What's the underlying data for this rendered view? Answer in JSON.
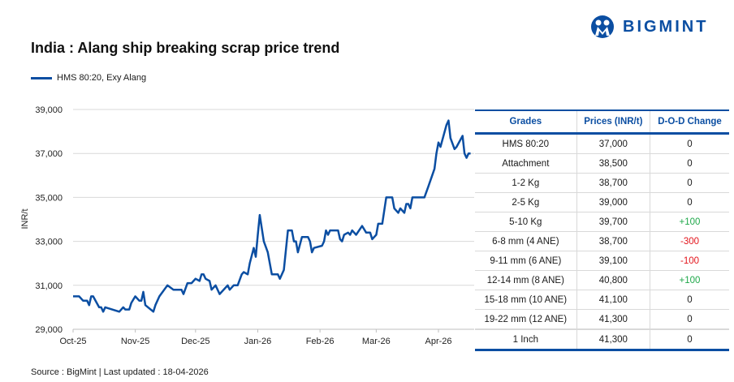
{
  "header": {
    "title": "India : Alang ship breaking scrap price trend",
    "logo_text": "BIGMINT"
  },
  "colors": {
    "series": "#0b4ea2",
    "positive": "#1fa84a",
    "negative": "#e3141b"
  },
  "chart_data": {
    "type": "line",
    "title": "India : Alang ship breaking scrap price trend",
    "ylabel": "INR/t",
    "xlabel": "",
    "ylim": [
      29000,
      39000
    ],
    "yticks": [
      "29,000",
      "31,000",
      "33,000",
      "35,000",
      "37,000",
      "39,000"
    ],
    "xticks": [
      {
        "label": "Oct-25",
        "date": "2025-10-01"
      },
      {
        "label": "Nov-25",
        "date": "2025-11-01"
      },
      {
        "label": "Dec-25",
        "date": "2025-12-01"
      },
      {
        "label": "Jan-26",
        "date": "2026-01-01"
      },
      {
        "label": "Feb-26",
        "date": "2026-02-01"
      },
      {
        "label": "Mar-26",
        "date": "2026-03-01"
      },
      {
        "label": "Apr-26",
        "date": "2026-04-01"
      }
    ],
    "grid": true,
    "legend": "top-left",
    "series": [
      {
        "name": "HMS 80:20, Exy Alang",
        "points": [
          [
            "2025-10-01",
            30500
          ],
          [
            "2025-10-04",
            30500
          ],
          [
            "2025-10-06",
            30300
          ],
          [
            "2025-10-08",
            30300
          ],
          [
            "2025-10-09",
            30100
          ],
          [
            "2025-10-10",
            30500
          ],
          [
            "2025-10-11",
            30500
          ],
          [
            "2025-10-14",
            30000
          ],
          [
            "2025-10-15",
            30000
          ],
          [
            "2025-10-16",
            29800
          ],
          [
            "2025-10-17",
            30000
          ],
          [
            "2025-10-24",
            29800
          ],
          [
            "2025-10-26",
            30000
          ],
          [
            "2025-10-27",
            29900
          ],
          [
            "2025-10-29",
            29900
          ],
          [
            "2025-10-30",
            30200
          ],
          [
            "2025-11-01",
            30500
          ],
          [
            "2025-11-03",
            30300
          ],
          [
            "2025-11-04",
            30300
          ],
          [
            "2025-11-05",
            30700
          ],
          [
            "2025-11-06",
            30100
          ],
          [
            "2025-11-10",
            29800
          ],
          [
            "2025-11-11",
            30100
          ],
          [
            "2025-11-13",
            30500
          ],
          [
            "2025-11-17",
            31000
          ],
          [
            "2025-11-20",
            30800
          ],
          [
            "2025-11-24",
            30800
          ],
          [
            "2025-11-25",
            30600
          ],
          [
            "2025-11-27",
            31100
          ],
          [
            "2025-11-29",
            31100
          ],
          [
            "2025-12-01",
            31300
          ],
          [
            "2025-12-03",
            31200
          ],
          [
            "2025-12-04",
            31500
          ],
          [
            "2025-12-05",
            31500
          ],
          [
            "2025-12-06",
            31300
          ],
          [
            "2025-12-08",
            31200
          ],
          [
            "2025-12-09",
            30800
          ],
          [
            "2025-12-11",
            31000
          ],
          [
            "2025-12-13",
            30600
          ],
          [
            "2025-12-17",
            31000
          ],
          [
            "2025-12-18",
            30800
          ],
          [
            "2025-12-20",
            31000
          ],
          [
            "2025-12-22",
            31000
          ],
          [
            "2025-12-24",
            31500
          ],
          [
            "2025-12-25",
            31600
          ],
          [
            "2025-12-27",
            31500
          ],
          [
            "2025-12-28",
            32000
          ],
          [
            "2025-12-30",
            32700
          ],
          [
            "2025-12-31",
            32300
          ],
          [
            "2026-01-01",
            33300
          ],
          [
            "2026-01-02",
            34200
          ],
          [
            "2026-01-04",
            33000
          ],
          [
            "2026-01-06",
            32500
          ],
          [
            "2026-01-08",
            31500
          ],
          [
            "2026-01-11",
            31500
          ],
          [
            "2026-01-12",
            31300
          ],
          [
            "2026-01-14",
            31700
          ],
          [
            "2026-01-16",
            33500
          ],
          [
            "2026-01-18",
            33500
          ],
          [
            "2026-01-19",
            33000
          ],
          [
            "2026-01-20",
            33000
          ],
          [
            "2026-01-21",
            32500
          ],
          [
            "2026-01-23",
            33200
          ],
          [
            "2026-01-26",
            33200
          ],
          [
            "2026-01-27",
            33000
          ],
          [
            "2026-01-28",
            32500
          ],
          [
            "2026-01-29",
            32700
          ],
          [
            "2026-02-02",
            32800
          ],
          [
            "2026-02-03",
            33000
          ],
          [
            "2026-02-04",
            33500
          ],
          [
            "2026-02-05",
            33300
          ],
          [
            "2026-02-06",
            33500
          ],
          [
            "2026-02-10",
            33500
          ],
          [
            "2026-02-11",
            33100
          ],
          [
            "2026-02-12",
            33000
          ],
          [
            "2026-02-13",
            33300
          ],
          [
            "2026-02-15",
            33400
          ],
          [
            "2026-02-16",
            33300
          ],
          [
            "2026-02-17",
            33500
          ],
          [
            "2026-02-18",
            33400
          ],
          [
            "2026-02-19",
            33300
          ],
          [
            "2026-02-22",
            33700
          ],
          [
            "2026-02-24",
            33400
          ],
          [
            "2026-02-26",
            33400
          ],
          [
            "2026-02-27",
            33100
          ],
          [
            "2026-03-01",
            33300
          ],
          [
            "2026-03-02",
            33800
          ],
          [
            "2026-03-04",
            33800
          ],
          [
            "2026-03-06",
            35000
          ],
          [
            "2026-03-09",
            35000
          ],
          [
            "2026-03-10",
            34500
          ],
          [
            "2026-03-12",
            34300
          ],
          [
            "2026-03-13",
            34500
          ],
          [
            "2026-03-15",
            34300
          ],
          [
            "2026-03-16",
            34700
          ],
          [
            "2026-03-17",
            34700
          ],
          [
            "2026-03-18",
            34500
          ],
          [
            "2026-03-19",
            35000
          ],
          [
            "2026-03-25",
            35000
          ],
          [
            "2026-03-27",
            35500
          ],
          [
            "2026-03-30",
            36300
          ],
          [
            "2026-03-31",
            37000
          ],
          [
            "2026-04-01",
            37500
          ],
          [
            "2026-04-02",
            37300
          ],
          [
            "2026-04-05",
            38300
          ],
          [
            "2026-04-06",
            38500
          ],
          [
            "2026-04-07",
            37700
          ],
          [
            "2026-04-09",
            37200
          ],
          [
            "2026-04-10",
            37300
          ],
          [
            "2026-04-13",
            37800
          ],
          [
            "2026-04-14",
            37000
          ],
          [
            "2026-04-15",
            36800
          ],
          [
            "2026-04-16",
            37000
          ],
          [
            "2026-04-17",
            37000
          ]
        ]
      }
    ]
  },
  "table": {
    "headers": [
      "Grades",
      "Prices (INR/t)",
      "D-O-D Change"
    ],
    "rows": [
      {
        "grade": "HMS 80:20",
        "price": "37,000",
        "change": "0",
        "trend": "flat"
      },
      {
        "grade": "Attachment",
        "price": "38,500",
        "change": "0",
        "trend": "flat"
      },
      {
        "grade": "1-2 Kg",
        "price": "38,700",
        "change": "0",
        "trend": "flat"
      },
      {
        "grade": "2-5 Kg",
        "price": "39,000",
        "change": "0",
        "trend": "flat"
      },
      {
        "grade": "5-10 Kg",
        "price": "39,700",
        "change": "+100",
        "trend": "up"
      },
      {
        "grade": "6-8 mm (4 ANE)",
        "price": "38,700",
        "change": "-300",
        "trend": "down"
      },
      {
        "grade": "9-11 mm (6 ANE)",
        "price": "39,100",
        "change": "-100",
        "trend": "down"
      },
      {
        "grade": "12-14 mm (8 ANE)",
        "price": "40,800",
        "change": "+100",
        "trend": "up"
      },
      {
        "grade": "15-18 mm (10 ANE)",
        "price": "41,100",
        "change": "0",
        "trend": "flat"
      },
      {
        "grade": "19-22 mm (12 ANE)",
        "price": "41,300",
        "change": "0",
        "trend": "flat"
      },
      {
        "grade": "1 Inch",
        "price": "41,300",
        "change": "0",
        "trend": "flat"
      }
    ]
  },
  "footer": {
    "source": "Source : BigMint | Last updated : 18-04-2026"
  }
}
